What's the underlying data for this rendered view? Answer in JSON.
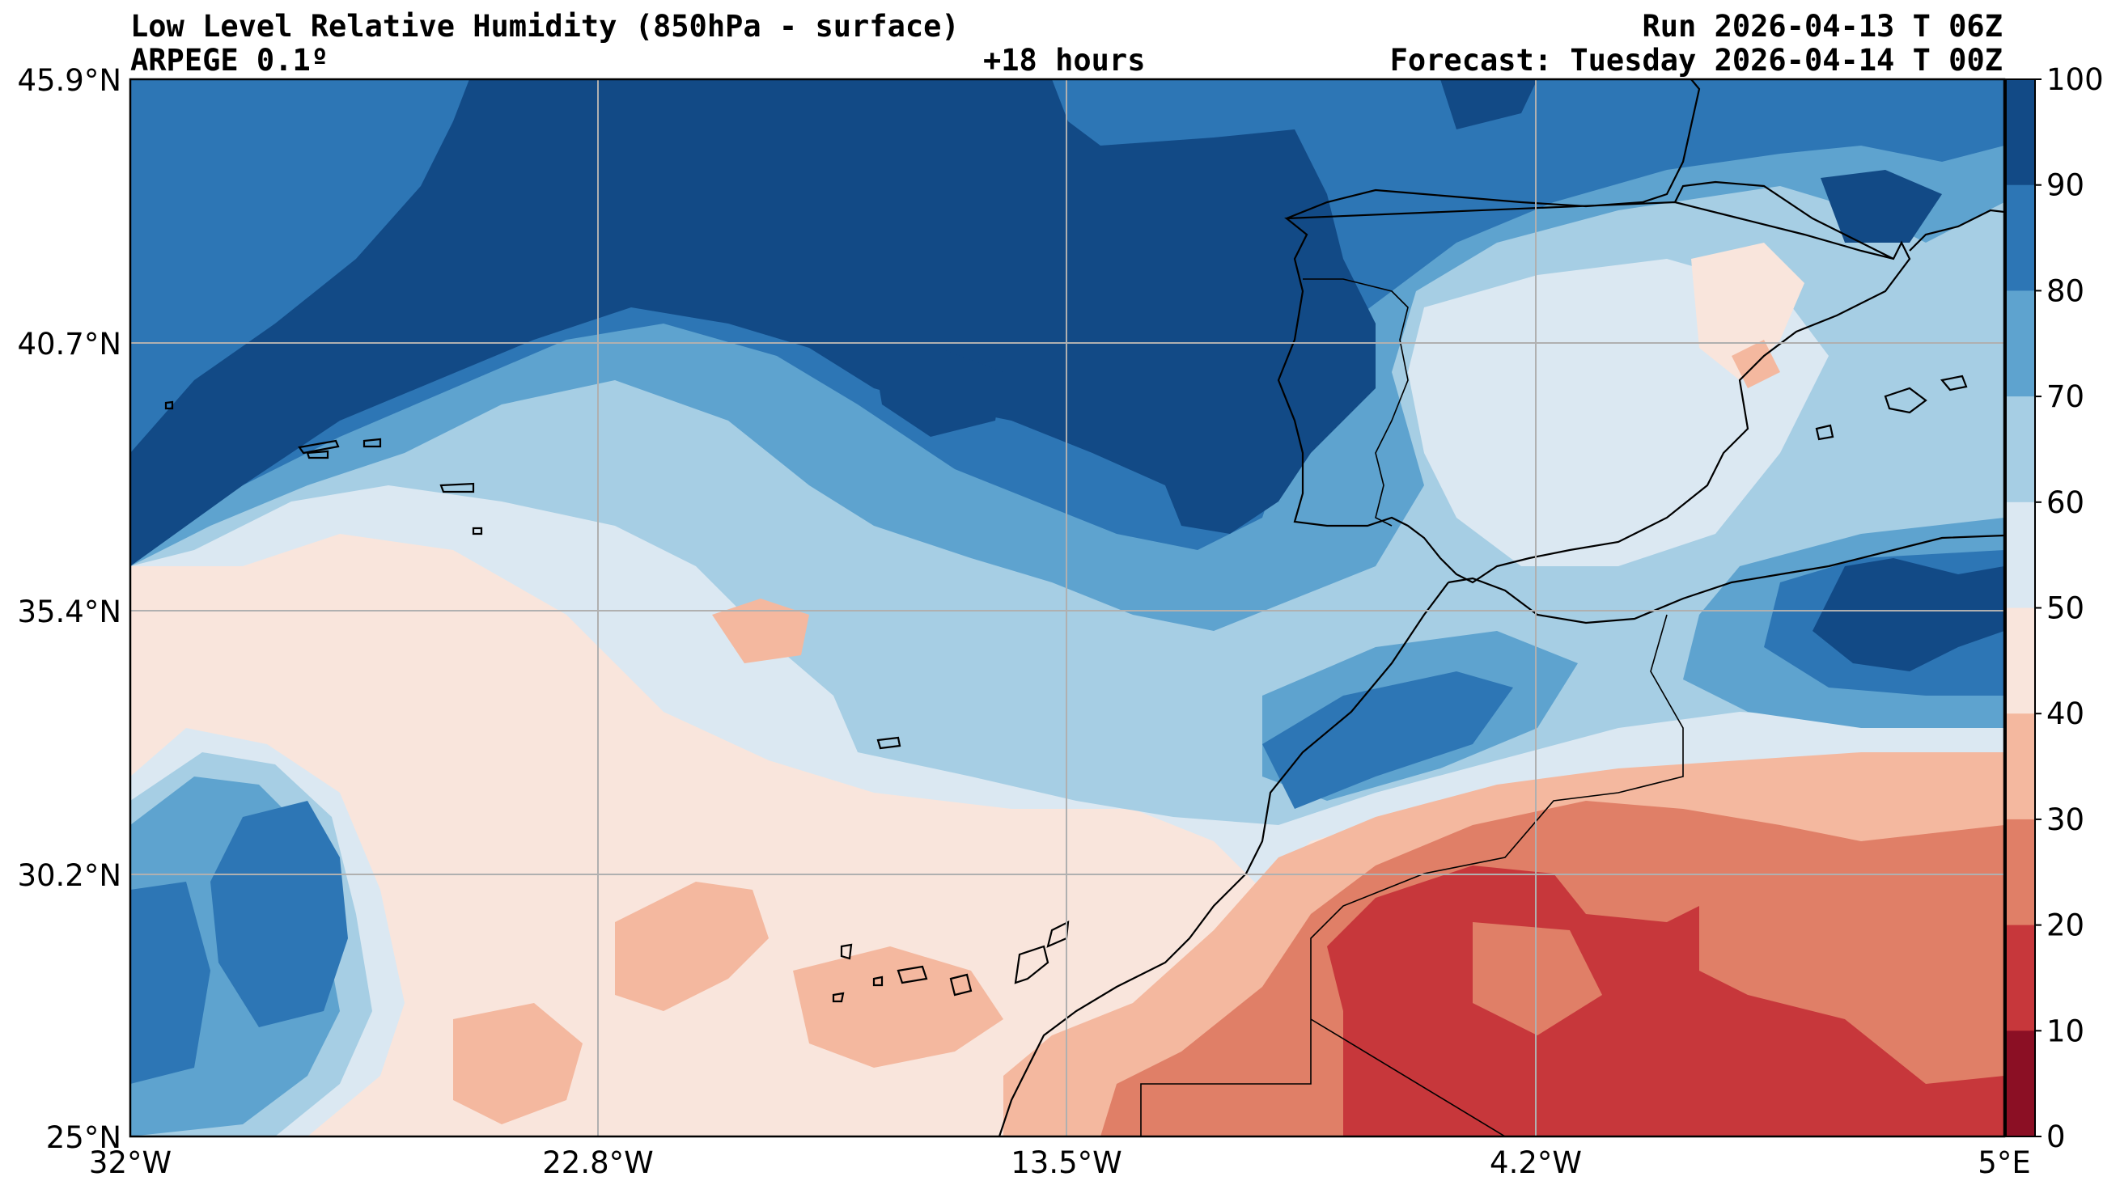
{
  "header": {
    "title": "Low Level Relative Humidity (850hPa - surface)",
    "model": "ARPEGE 0.1º",
    "lead_time": "+18 hours",
    "run": "Run 2026-04-13 T 06Z",
    "forecast": "Forecast: Tuesday 2026-04-14 T 00Z"
  },
  "map": {
    "lat_labels": [
      "45.9°N",
      "40.7°N",
      "35.4°N",
      "30.2°N",
      "25°N"
    ],
    "lon_labels": [
      "32°W",
      "22.8°W",
      "13.5°W",
      "4.2°W",
      "5°E"
    ],
    "grid": true
  },
  "colorbar": {
    "ticks": [
      "100",
      "90",
      "80",
      "70",
      "60",
      "50",
      "40",
      "30",
      "20",
      "10",
      "0"
    ],
    "bins": [
      {
        "range": "90-100",
        "color": "#124a86"
      },
      {
        "range": "80-90",
        "color": "#2d76b5"
      },
      {
        "range": "70-80",
        "color": "#5ea3cf"
      },
      {
        "range": "60-70",
        "color": "#a6cee4"
      },
      {
        "range": "50-60",
        "color": "#dbe8f2"
      },
      {
        "range": "40-50",
        "color": "#f9e5dc"
      },
      {
        "range": "30-40",
        "color": "#f4b89f"
      },
      {
        "range": "20-30",
        "color": "#e07f67"
      },
      {
        "range": "10-20",
        "color": "#c7373b"
      },
      {
        "range": "0-10",
        "color": "#8b0f24"
      }
    ]
  }
}
